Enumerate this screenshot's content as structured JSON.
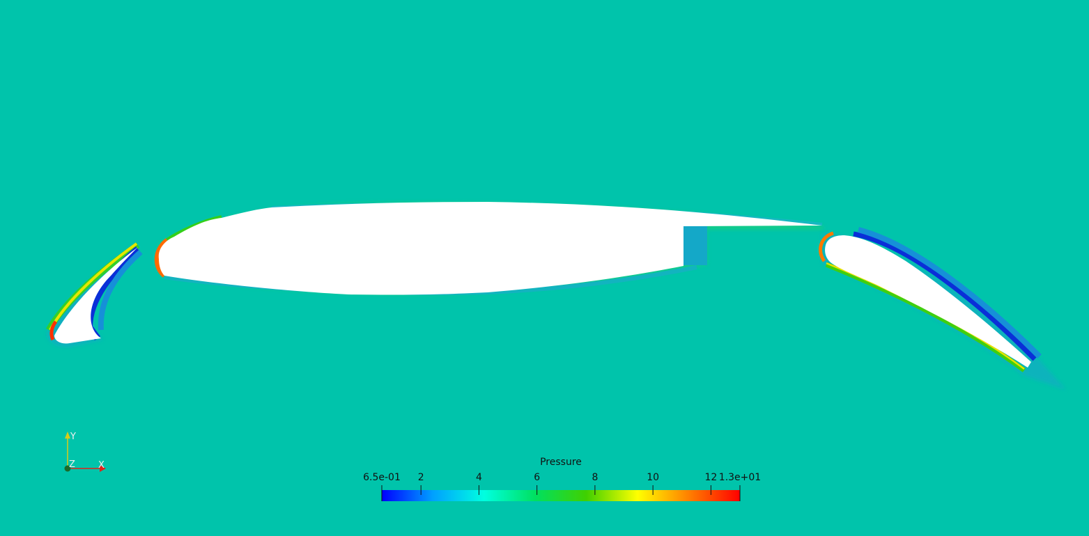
{
  "scene": {
    "background_color": "#00c4ab",
    "field_name": "Pressure"
  },
  "axes_triad": {
    "x_label": "X",
    "y_label": "Y",
    "z_label": "Z",
    "x_color": "#e0221a",
    "y_color": "#d8cc18",
    "z_color": "#1a7a2a"
  },
  "colorbar": {
    "title": "Pressure",
    "min": 0.65,
    "max": 13,
    "tick_labels": [
      {
        "text": "6.5e-01",
        "value": 0.65
      },
      {
        "text": "2",
        "value": 2
      },
      {
        "text": "4",
        "value": 4
      },
      {
        "text": "6",
        "value": 6
      },
      {
        "text": "8",
        "value": 8
      },
      {
        "text": "10",
        "value": 10
      },
      {
        "text": "12",
        "value": 12
      },
      {
        "text": "1.3e+01",
        "value": 13
      }
    ],
    "colormap": [
      "#0000ff",
      "#00a0ff",
      "#00ffe0",
      "#00e060",
      "#40d000",
      "#ffff00",
      "#ff8000",
      "#ff0000"
    ]
  }
}
